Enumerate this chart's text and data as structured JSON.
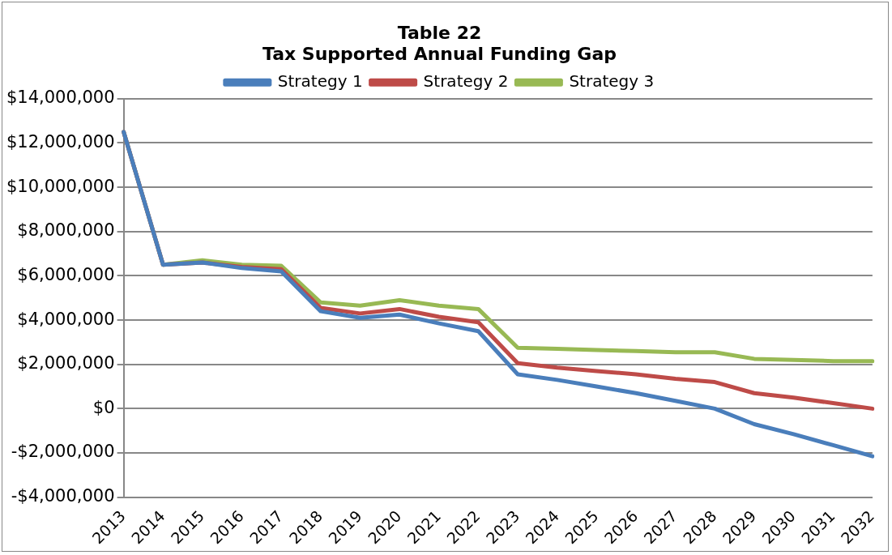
{
  "chart_data": {
    "type": "line",
    "title": "Table 22",
    "subtitle": "Tax Supported Annual Funding Gap",
    "categories": [
      "2013",
      "2014",
      "2015",
      "2016",
      "2017",
      "2018",
      "2019",
      "2020",
      "2021",
      "2022",
      "2023",
      "2024",
      "2025",
      "2026",
      "2027",
      "2028",
      "2029",
      "2030",
      "2031",
      "2032"
    ],
    "series": [
      {
        "name": "Strategy 1",
        "color": "#4a7ebb",
        "values": [
          12500000,
          6500000,
          6600000,
          6350000,
          6200000,
          4400000,
          4100000,
          4250000,
          3850000,
          3500000,
          1550000,
          1300000,
          1000000,
          700000,
          350000,
          0,
          -700000,
          -1150000,
          -1650000,
          -2150000
        ]
      },
      {
        "name": "Strategy 2",
        "color": "#be4b48",
        "values": [
          12500000,
          6500000,
          6600000,
          6400000,
          6300000,
          4550000,
          4300000,
          4500000,
          4150000,
          3900000,
          2050000,
          1850000,
          1700000,
          1550000,
          1350000,
          1200000,
          700000,
          500000,
          250000,
          0
        ]
      },
      {
        "name": "Strategy 3",
        "color": "#98b954",
        "values": [
          12500000,
          6500000,
          6700000,
          6500000,
          6450000,
          4800000,
          4650000,
          4900000,
          4650000,
          4500000,
          2750000,
          2700000,
          2650000,
          2600000,
          2550000,
          2550000,
          2250000,
          2200000,
          2150000,
          2150000
        ]
      }
    ],
    "ylim": [
      -4000000,
      14000000
    ],
    "yticks": [
      {
        "value": -4000000,
        "label": "-$4,000,000"
      },
      {
        "value": -2000000,
        "label": "-$2,000,000"
      },
      {
        "value": 0,
        "label": "$0"
      },
      {
        "value": 2000000,
        "label": "$2,000,000"
      },
      {
        "value": 4000000,
        "label": "$4,000,000"
      },
      {
        "value": 6000000,
        "label": "$6,000,000"
      },
      {
        "value": 8000000,
        "label": "$8,000,000"
      },
      {
        "value": 10000000,
        "label": "$10,000,000"
      },
      {
        "value": 12000000,
        "label": "$12,000,000"
      },
      {
        "value": 14000000,
        "label": "$14,000,000"
      }
    ],
    "grid": "y",
    "legend": "top",
    "marker": "none",
    "line_style": "solid"
  }
}
